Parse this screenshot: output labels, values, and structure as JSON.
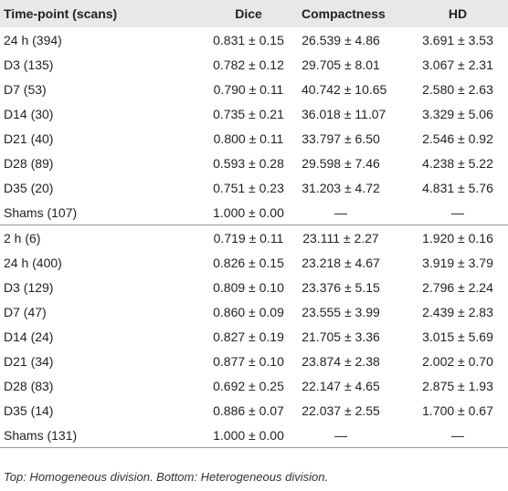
{
  "table": {
    "header": [
      "Time-point (scans)",
      "Dice",
      "Compactness",
      "HD"
    ],
    "groups": [
      [
        [
          "24 h (394)",
          "0.831 ± 0.15",
          "26.539 ± 4.86",
          "3.691 ± 3.53"
        ],
        [
          "D3 (135)",
          "0.782 ± 0.12",
          "29.705 ± 8.01",
          "3.067 ± 2.31"
        ],
        [
          "D7 (53)",
          "0.790 ± 0.11",
          "40.742 ± 10.65",
          "2.580 ± 2.63"
        ],
        [
          "D14 (30)",
          "0.735 ± 0.21",
          "36.018 ± 11.07",
          "3.329 ± 5.06"
        ],
        [
          "D21 (40)",
          "0.800 ± 0.11",
          "33.797 ± 6.50",
          "2.546 ± 0.92"
        ],
        [
          "D28 (89)",
          "0.593 ± 0.28",
          "29.598 ± 7.46",
          "4.238 ± 5.22"
        ],
        [
          "D35 (20)",
          "0.751 ± 0.23",
          "31.203 ± 4.72",
          "4.831 ± 5.76"
        ],
        [
          "Shams (107)",
          "1.000 ± 0.00",
          "—",
          "—"
        ]
      ],
      [
        [
          "2 h (6)",
          "0.719 ± 0.11",
          "23.111 ± 2.27",
          "1.920 ± 0.16"
        ],
        [
          "24 h (400)",
          "0.826 ± 0.15",
          "23.218 ± 4.67",
          "3.919 ± 3.79"
        ],
        [
          "D3 (129)",
          "0.809 ± 0.10",
          "23.376 ± 5.15",
          "2.796 ± 2.24"
        ],
        [
          "D7 (47)",
          "0.860 ± 0.09",
          "23.555 ± 3.99",
          "2.439 ± 2.83"
        ],
        [
          "D14 (24)",
          "0.827 ± 0.19",
          "21.705 ± 3.36",
          "3.015 ± 5.69"
        ],
        [
          "D21 (34)",
          "0.877 ± 0.10",
          "23.874 ± 2.38",
          "2.002 ± 0.70"
        ],
        [
          "D28 (83)",
          "0.692 ± 0.25",
          "22.147 ± 4.65",
          "2.875 ± 1.93"
        ],
        [
          "D35 (14)",
          "0.886 ± 0.07",
          "22.037 ± 2.55",
          "1.700 ± 0.67"
        ],
        [
          "Shams (131)",
          "1.000 ± 0.00",
          "—",
          "—"
        ]
      ]
    ],
    "footnote": "Top: Homogeneous division. Bottom: Heterogeneous division."
  }
}
